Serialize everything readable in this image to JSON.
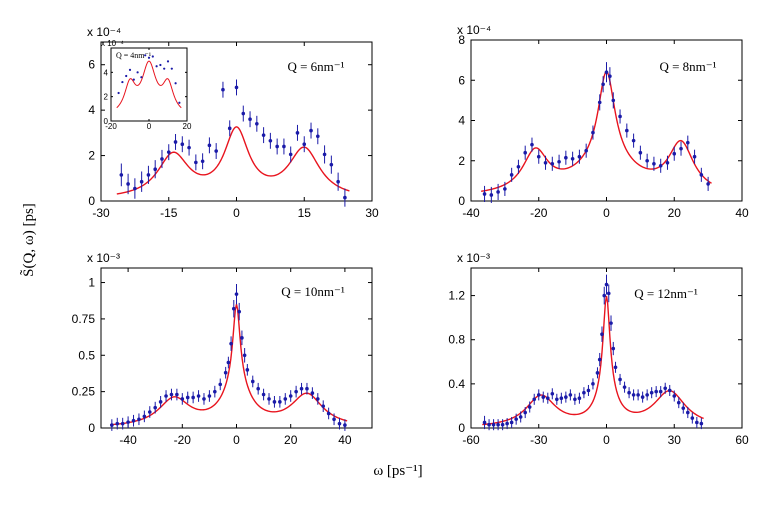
{
  "colors": {
    "fit": "#e8141e",
    "data": "#1a1aa8",
    "axis": "#000000"
  },
  "figure": {
    "xlabel": "ω [ps⁻¹]",
    "ylabel": "S̃(Q, ω) [ps]"
  },
  "chart_data": [
    {
      "type": "scatter",
      "panel": "top-left",
      "annotation": "Q = 6nm⁻¹",
      "exponent": "x 10⁻⁴",
      "xlim": [
        -30,
        30
      ],
      "ylim": [
        0,
        7
      ],
      "xticks": [
        -30,
        -15,
        0,
        15,
        30
      ],
      "xtick_labels": [
        "-30",
        "-15",
        "0",
        "15",
        "30"
      ],
      "yticks": [
        0,
        2,
        4,
        6
      ],
      "ytick_labels": [
        "0",
        "2",
        "4",
        "6"
      ],
      "points": [
        [
          -25.5,
          1.15,
          0.5
        ],
        [
          -24,
          0.75,
          0.45
        ],
        [
          -22.5,
          0.55,
          0.45
        ],
        [
          -21,
          0.85,
          0.45
        ],
        [
          -19.5,
          1.15,
          0.4
        ],
        [
          -18,
          1.4,
          0.4
        ],
        [
          -16.5,
          1.85,
          0.4
        ],
        [
          -15,
          2.15,
          0.35
        ],
        [
          -13.5,
          2.6,
          0.35
        ],
        [
          -12,
          2.5,
          0.35
        ],
        [
          -10.5,
          2.35,
          0.35
        ],
        [
          -9,
          1.7,
          0.35
        ],
        [
          -7.5,
          1.75,
          0.35
        ],
        [
          -6,
          2.45,
          0.35
        ],
        [
          -4.5,
          2.2,
          0.35
        ],
        [
          -3,
          4.9,
          0.35
        ],
        [
          -1.5,
          3.2,
          0.35
        ],
        [
          0,
          5.0,
          0.35
        ],
        [
          1.5,
          3.85,
          0.35
        ],
        [
          3,
          3.6,
          0.35
        ],
        [
          4.5,
          3.4,
          0.35
        ],
        [
          6,
          2.9,
          0.35
        ],
        [
          7.5,
          2.65,
          0.35
        ],
        [
          9,
          2.4,
          0.35
        ],
        [
          10.5,
          2.4,
          0.35
        ],
        [
          12,
          2.05,
          0.35
        ],
        [
          13.5,
          3.0,
          0.35
        ],
        [
          15,
          2.5,
          0.35
        ],
        [
          16.5,
          3.1,
          0.35
        ],
        [
          18,
          2.85,
          0.35
        ],
        [
          19.5,
          2.05,
          0.4
        ],
        [
          21,
          1.6,
          0.4
        ],
        [
          22.5,
          0.85,
          0.4
        ],
        [
          24,
          0.15,
          0.4
        ]
      ],
      "fit": {
        "base": 0.05,
        "peaks": [
          [
            0,
            2.9,
            3.3
          ],
          [
            -14,
            1.9,
            4.2
          ],
          [
            15,
            2.15,
            4.2
          ]
        ]
      },
      "inset": {
        "annotation": "Q = 4nm⁻¹",
        "exponent": "x 10⁻⁴",
        "xlim": [
          -20,
          20
        ],
        "ylim": [
          0,
          6
        ],
        "xticks": [
          -20,
          0,
          20
        ],
        "xtick_labels": [
          "-20",
          "0",
          "20"
        ],
        "yticks": [
          0,
          2,
          4
        ],
        "ytick_labels": [
          "0",
          "2",
          "4"
        ],
        "points": [
          [
            -16,
            2.3
          ],
          [
            -14,
            3.2
          ],
          [
            -12,
            3.7
          ],
          [
            -10,
            4.2
          ],
          [
            -8,
            3.4
          ],
          [
            -6,
            4.0
          ],
          [
            -4,
            3.6
          ],
          [
            -2,
            5.4
          ],
          [
            0,
            5.2
          ],
          [
            2,
            5.3
          ],
          [
            4,
            4.5
          ],
          [
            6,
            4.6
          ],
          [
            8,
            4.3
          ],
          [
            10,
            4.9
          ],
          [
            12,
            4.3
          ],
          [
            14,
            3.1
          ],
          [
            16,
            1.5
          ]
        ],
        "fit": {
          "base": 0.3,
          "peaks": [
            [
              0,
              4.1,
              4.5
            ],
            [
              -10,
              2.4,
              3.5
            ],
            [
              10,
              2.4,
              3.5
            ]
          ]
        }
      }
    },
    {
      "type": "scatter",
      "panel": "top-right",
      "annotation": "Q = 8nm⁻¹",
      "exponent": "x 10⁻⁴",
      "xlim": [
        -40,
        40
      ],
      "ylim": [
        0,
        8
      ],
      "xticks": [
        -40,
        -20,
        0,
        20,
        40
      ],
      "xtick_labels": [
        "-40",
        "-20",
        "0",
        "20",
        "40"
      ],
      "yticks": [
        0,
        2,
        4,
        6,
        8
      ],
      "ytick_labels": [
        "0",
        "2",
        "4",
        "6",
        "8"
      ],
      "points": [
        [
          -36,
          0.35,
          0.4
        ],
        [
          -34,
          0.3,
          0.4
        ],
        [
          -32,
          0.45,
          0.4
        ],
        [
          -30,
          0.6,
          0.35
        ],
        [
          -28,
          1.3,
          0.35
        ],
        [
          -26,
          1.7,
          0.35
        ],
        [
          -24,
          2.4,
          0.35
        ],
        [
          -22,
          2.8,
          0.35
        ],
        [
          -20,
          2.2,
          0.35
        ],
        [
          -18,
          1.9,
          0.35
        ],
        [
          -16,
          1.85,
          0.35
        ],
        [
          -14,
          1.95,
          0.35
        ],
        [
          -12,
          2.15,
          0.35
        ],
        [
          -10,
          2.1,
          0.35
        ],
        [
          -8,
          2.2,
          0.35
        ],
        [
          -6,
          2.5,
          0.35
        ],
        [
          -4,
          3.4,
          0.35
        ],
        [
          -2,
          4.9,
          0.4
        ],
        [
          -1,
          5.8,
          0.4
        ],
        [
          0,
          6.4,
          0.5
        ],
        [
          1,
          6.2,
          0.45
        ],
        [
          2,
          5.0,
          0.4
        ],
        [
          4,
          4.2,
          0.35
        ],
        [
          6,
          3.5,
          0.35
        ],
        [
          8,
          3.0,
          0.35
        ],
        [
          10,
          2.4,
          0.35
        ],
        [
          12,
          2.0,
          0.35
        ],
        [
          14,
          1.85,
          0.35
        ],
        [
          16,
          1.75,
          0.35
        ],
        [
          18,
          1.9,
          0.35
        ],
        [
          20,
          2.35,
          0.35
        ],
        [
          22,
          2.6,
          0.35
        ],
        [
          24,
          2.9,
          0.35
        ],
        [
          26,
          2.2,
          0.35
        ],
        [
          28,
          1.3,
          0.35
        ],
        [
          30,
          0.85,
          0.35
        ]
      ],
      "fit": {
        "base": 0.15,
        "peaks": [
          [
            0,
            4.6,
            3.0
          ],
          [
            -21,
            2.0,
            4.5
          ],
          [
            22,
            2.4,
            4.5
          ],
          [
            0,
            1.5,
            12
          ]
        ]
      }
    },
    {
      "type": "scatter",
      "panel": "bottom-left",
      "annotation": "Q = 10nm⁻¹",
      "exponent": "x 10⁻³",
      "xlim": [
        -50,
        50
      ],
      "ylim": [
        0,
        1.1
      ],
      "xticks": [
        -40,
        -20,
        0,
        20,
        40
      ],
      "xtick_labels": [
        "-40",
        "-20",
        "0",
        "20",
        "40"
      ],
      "yticks": [
        0,
        0.25,
        0.5,
        0.75,
        1
      ],
      "ytick_labels": [
        "0",
        "0.25",
        "0.5",
        "0.75",
        "1"
      ],
      "points": [
        [
          -46,
          0.02,
          0.04
        ],
        [
          -44,
          0.03,
          0.04
        ],
        [
          -42,
          0.03,
          0.04
        ],
        [
          -40,
          0.04,
          0.04
        ],
        [
          -38,
          0.05,
          0.04
        ],
        [
          -36,
          0.06,
          0.04
        ],
        [
          -34,
          0.08,
          0.04
        ],
        [
          -32,
          0.11,
          0.04
        ],
        [
          -30,
          0.14,
          0.04
        ],
        [
          -28,
          0.18,
          0.04
        ],
        [
          -26,
          0.22,
          0.04
        ],
        [
          -24,
          0.23,
          0.04
        ],
        [
          -22,
          0.23,
          0.04
        ],
        [
          -20,
          0.2,
          0.04
        ],
        [
          -18,
          0.21,
          0.04
        ],
        [
          -16,
          0.21,
          0.04
        ],
        [
          -14,
          0.22,
          0.04
        ],
        [
          -12,
          0.2,
          0.04
        ],
        [
          -10,
          0.22,
          0.04
        ],
        [
          -8,
          0.25,
          0.04
        ],
        [
          -6,
          0.3,
          0.04
        ],
        [
          -4,
          0.38,
          0.04
        ],
        [
          -3,
          0.45,
          0.04
        ],
        [
          -2,
          0.58,
          0.05
        ],
        [
          -1,
          0.82,
          0.06
        ],
        [
          0,
          0.92,
          0.07
        ],
        [
          1,
          0.8,
          0.06
        ],
        [
          2,
          0.62,
          0.05
        ],
        [
          3,
          0.5,
          0.05
        ],
        [
          4,
          0.4,
          0.04
        ],
        [
          6,
          0.32,
          0.04
        ],
        [
          8,
          0.27,
          0.04
        ],
        [
          10,
          0.23,
          0.04
        ],
        [
          12,
          0.2,
          0.04
        ],
        [
          14,
          0.18,
          0.04
        ],
        [
          16,
          0.18,
          0.04
        ],
        [
          18,
          0.2,
          0.04
        ],
        [
          20,
          0.22,
          0.04
        ],
        [
          22,
          0.25,
          0.04
        ],
        [
          24,
          0.27,
          0.04
        ],
        [
          26,
          0.27,
          0.04
        ],
        [
          28,
          0.24,
          0.04
        ],
        [
          30,
          0.2,
          0.04
        ],
        [
          32,
          0.15,
          0.04
        ],
        [
          34,
          0.1,
          0.04
        ],
        [
          36,
          0.06,
          0.04
        ],
        [
          38,
          0.03,
          0.04
        ],
        [
          40,
          0.02,
          0.04
        ]
      ],
      "fit": {
        "base": 0.0,
        "peaks": [
          [
            0,
            0.55,
            1.6
          ],
          [
            0,
            0.27,
            6.0
          ],
          [
            -23,
            0.19,
            7.0
          ],
          [
            26,
            0.22,
            7.0
          ]
        ]
      }
    },
    {
      "type": "scatter",
      "panel": "bottom-right",
      "annotation": "Q = 12nm⁻¹",
      "exponent": "x 10⁻³",
      "xlim": [
        -60,
        60
      ],
      "ylim": [
        0,
        1.45
      ],
      "xticks": [
        -60,
        -30,
        0,
        30,
        60
      ],
      "xtick_labels": [
        "-60",
        "-30",
        "0",
        "30",
        "60"
      ],
      "yticks": [
        0,
        0.4,
        0.8,
        1.2
      ],
      "ytick_labels": [
        "0",
        "0.4",
        "0.8",
        "1.2"
      ],
      "points": [
        [
          -54,
          0.05,
          0.06
        ],
        [
          -52,
          0.03,
          0.05
        ],
        [
          -50,
          0.03,
          0.05
        ],
        [
          -48,
          0.03,
          0.05
        ],
        [
          -46,
          0.03,
          0.05
        ],
        [
          -44,
          0.04,
          0.05
        ],
        [
          -42,
          0.05,
          0.05
        ],
        [
          -40,
          0.08,
          0.05
        ],
        [
          -38,
          0.1,
          0.05
        ],
        [
          -36,
          0.14,
          0.05
        ],
        [
          -34,
          0.19,
          0.05
        ],
        [
          -32,
          0.26,
          0.05
        ],
        [
          -30,
          0.3,
          0.05
        ],
        [
          -28,
          0.28,
          0.05
        ],
        [
          -26,
          0.27,
          0.05
        ],
        [
          -24,
          0.31,
          0.05
        ],
        [
          -22,
          0.26,
          0.05
        ],
        [
          -20,
          0.27,
          0.05
        ],
        [
          -18,
          0.28,
          0.05
        ],
        [
          -16,
          0.3,
          0.05
        ],
        [
          -14,
          0.26,
          0.05
        ],
        [
          -12,
          0.27,
          0.05
        ],
        [
          -10,
          0.32,
          0.05
        ],
        [
          -8,
          0.34,
          0.05
        ],
        [
          -6,
          0.4,
          0.05
        ],
        [
          -4,
          0.5,
          0.05
        ],
        [
          -3,
          0.62,
          0.06
        ],
        [
          -2,
          0.85,
          0.07
        ],
        [
          -1,
          1.2,
          0.08
        ],
        [
          0,
          1.3,
          0.09
        ],
        [
          1,
          1.22,
          0.08
        ],
        [
          2,
          0.95,
          0.07
        ],
        [
          3,
          0.72,
          0.06
        ],
        [
          4,
          0.55,
          0.05
        ],
        [
          6,
          0.44,
          0.05
        ],
        [
          8,
          0.37,
          0.05
        ],
        [
          10,
          0.32,
          0.05
        ],
        [
          12,
          0.3,
          0.05
        ],
        [
          14,
          0.3,
          0.05
        ],
        [
          16,
          0.28,
          0.05
        ],
        [
          18,
          0.3,
          0.05
        ],
        [
          20,
          0.32,
          0.05
        ],
        [
          22,
          0.33,
          0.05
        ],
        [
          24,
          0.33,
          0.05
        ],
        [
          26,
          0.36,
          0.05
        ],
        [
          28,
          0.34,
          0.05
        ],
        [
          30,
          0.29,
          0.05
        ],
        [
          32,
          0.23,
          0.05
        ],
        [
          34,
          0.18,
          0.05
        ],
        [
          36,
          0.14,
          0.05
        ],
        [
          38,
          0.09,
          0.05
        ],
        [
          40,
          0.05,
          0.05
        ],
        [
          42,
          0.04,
          0.05
        ]
      ],
      "fit": {
        "base": 0.0,
        "peaks": [
          [
            0,
            0.85,
            1.8
          ],
          [
            0,
            0.3,
            5.0
          ],
          [
            -29,
            0.28,
            8.0
          ],
          [
            28,
            0.32,
            8.5
          ]
        ]
      }
    }
  ]
}
